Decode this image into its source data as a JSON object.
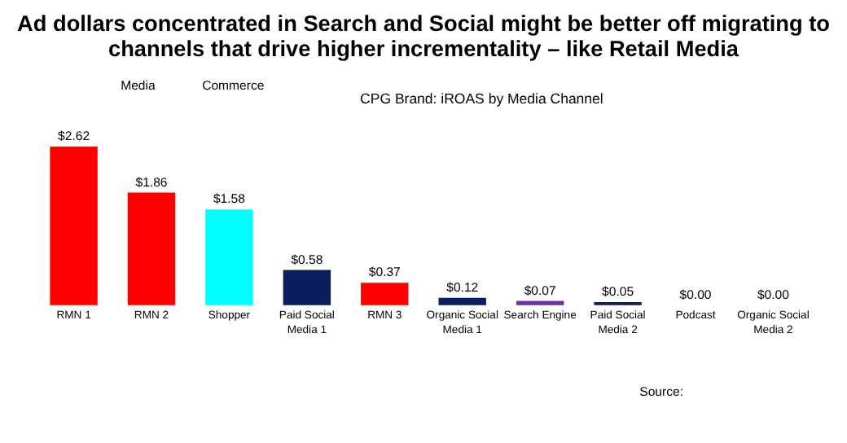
{
  "chart_data": {
    "type": "bar",
    "title": [
      "Ad dollars concentrated in Search and Social might be better off migrating to",
      "channels that drive higher incrementality – like Retail Media"
    ],
    "subtitle": "CPG Brand: iROAS by Media Channel",
    "categories": [
      "RMN 1",
      "RMN 2",
      "Shopper",
      "Paid Social Media 1",
      "RMN 3",
      "Organic Social Media 1",
      "Search Engine",
      "Paid Social Media 2",
      "Podcast",
      "Organic Social Media 2"
    ],
    "values": [
      2.62,
      1.86,
      1.58,
      0.58,
      0.37,
      0.12,
      0.07,
      0.05,
      0.0,
      0.0
    ],
    "colors": [
      "#ff0000",
      "#ff0000",
      "#00ffff",
      "#0a1f5c",
      "#ff0000",
      "#0a1f5c",
      "#7030a0",
      "#0a1f5c",
      "#0a1f5c",
      "#0a1f5c"
    ],
    "value_labels": [
      "$2.62",
      "$1.86",
      "$1.58",
      "$0.58",
      "$0.37",
      "$0.12",
      "$0.07",
      "$0.05",
      "$0.00",
      "$0.00"
    ],
    "annotations": [
      "Media",
      "Commerce",
      "Source:"
    ],
    "grid": false
  }
}
